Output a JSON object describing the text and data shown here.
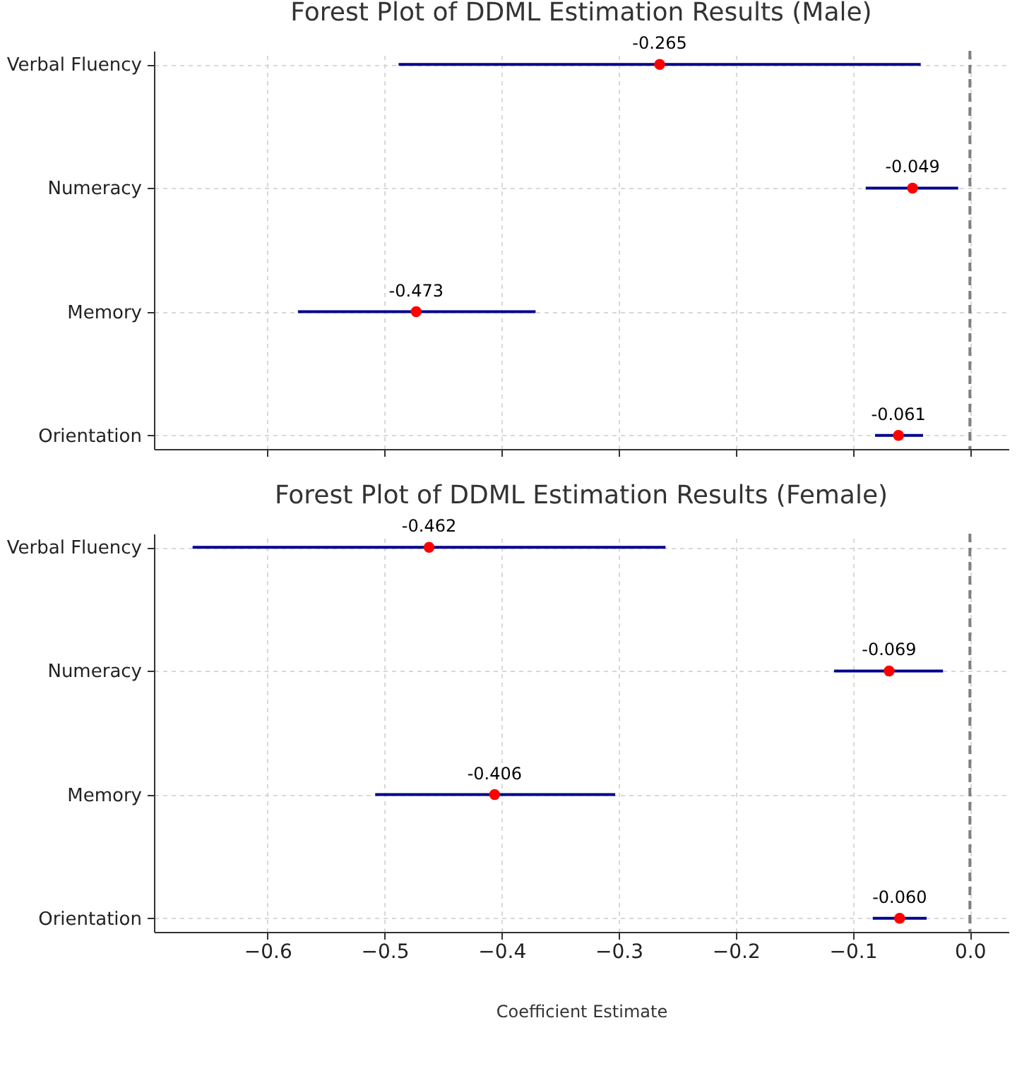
{
  "chart_data": [
    {
      "type": "scatter",
      "title": "Forest Plot of DDML Estimation Results (Male)",
      "orientation": "horizontal",
      "categories": [
        "Verbal Fluency",
        "Numeracy",
        "Memory",
        "Orientation"
      ],
      "series": [
        {
          "color": "#ff0000",
          "values": [
            -0.265,
            -0.049,
            -0.473,
            -0.061
          ],
          "value_labels": [
            "-0.265",
            "-0.049",
            "-0.473",
            "-0.061"
          ],
          "errors": [
            [
              -0.488,
              -0.042
            ],
            [
              -0.089,
              -0.01
            ],
            [
              -0.574,
              -0.371
            ],
            [
              -0.081,
              -0.04
            ]
          ]
        }
      ],
      "xlim": [
        -0.697,
        0.033
      ],
      "xticks": [
        -0.6,
        -0.5,
        -0.4,
        -0.3,
        -0.2,
        -0.1,
        0
      ],
      "tick_labels": "y",
      "grid": true,
      "marker": "circle",
      "ref_lines": [
        {
          "axis": "x",
          "value": 0,
          "color": "#808080",
          "line_style": "dashed"
        }
      ]
    },
    {
      "type": "scatter",
      "title": "Forest Plot of DDML Estimation Results (Female)",
      "orientation": "horizontal",
      "categories": [
        "Verbal Fluency",
        "Numeracy",
        "Memory",
        "Orientation"
      ],
      "xlabel": "Coefficient Estimate",
      "series": [
        {
          "color": "#ff0000",
          "values": [
            -0.462,
            -0.069,
            -0.406,
            -0.06
          ],
          "value_labels": [
            "-0.462",
            "-0.069",
            "-0.406",
            "-0.060"
          ],
          "errors": [
            [
              -0.664,
              -0.26
            ],
            [
              -0.116,
              -0.023
            ],
            [
              -0.508,
              -0.303
            ],
            [
              -0.083,
              -0.037
            ]
          ]
        }
      ],
      "xlim": [
        -0.697,
        0.033
      ],
      "xticks": [
        {
          "value": -0.6,
          "label": "−0.6"
        },
        {
          "value": -0.5,
          "label": "−0.5"
        },
        {
          "value": -0.4,
          "label": "−0.4"
        },
        {
          "value": -0.3,
          "label": "−0.3"
        },
        {
          "value": -0.2,
          "label": "−0.2"
        },
        {
          "value": -0.1,
          "label": "−0.1"
        },
        {
          "value": 0,
          "label": "0.0"
        }
      ],
      "grid": true,
      "marker": "circle",
      "ref_lines": [
        {
          "axis": "x",
          "value": 0,
          "color": "#808080",
          "line_style": "dashed"
        }
      ]
    }
  ]
}
